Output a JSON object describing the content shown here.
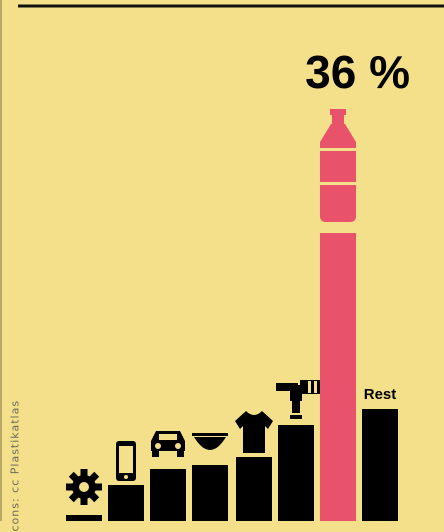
{
  "credit": "cons: cc Plastikatlas",
  "colors": {
    "background": "#f4e08a",
    "bar": "#000000",
    "highlight": "#e8526a"
  },
  "chart_data": {
    "type": "bar",
    "title": "",
    "xlabel": "",
    "ylabel": "",
    "ylim": [
      0,
      40
    ],
    "categories": [
      "industrial machinery",
      "electronics",
      "transport",
      "household goods",
      "textiles",
      "construction",
      "packaging",
      "Rest"
    ],
    "icons": [
      "gear-icon",
      "smartphone-icon",
      "car-icon",
      "bowl-icon",
      "tshirt-icon",
      "faucet-icon",
      "bottle-icon",
      ""
    ],
    "values": [
      0.8,
      4.5,
      6.5,
      7.0,
      8.0,
      12.0,
      36.0,
      14.0
    ],
    "highlight_index": 6,
    "data_labels": {
      "6": "36 %",
      "7": "Rest"
    }
  }
}
